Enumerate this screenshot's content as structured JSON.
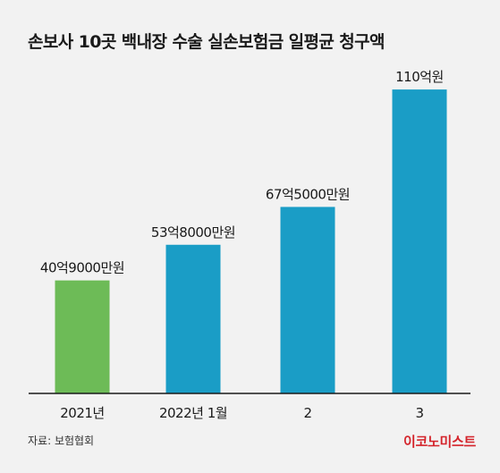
{
  "title": "손보사 10곳 백내장 수술 실손보험금 일평균 청구액",
  "source": "자료: 보험협회",
  "brand": "이코노미스트",
  "colors": {
    "background": "#f2f2f2",
    "highlight_bar": "#6dbb57",
    "bar": "#1a9dc6",
    "axis": "#1a1a1a",
    "brand": "#d4242b"
  },
  "chart_data": {
    "type": "bar",
    "title": "손보사 10곳 백내장 수술 실손보험금 일평균 청구액",
    "xlabel": "",
    "ylabel": "",
    "unit": "억원",
    "categories": [
      "2021년",
      "2022년 1월",
      "2",
      "3"
    ],
    "values": [
      40.9,
      53.8,
      67.5,
      110
    ],
    "data_labels": [
      "40억9000만원",
      "53억8000만원",
      "67억5000만원",
      "110억원"
    ],
    "bar_colors": [
      "#6dbb57",
      "#1a9dc6",
      "#1a9dc6",
      "#1a9dc6"
    ],
    "ylim": [
      0,
      115
    ],
    "grid": false,
    "legend": "none"
  }
}
